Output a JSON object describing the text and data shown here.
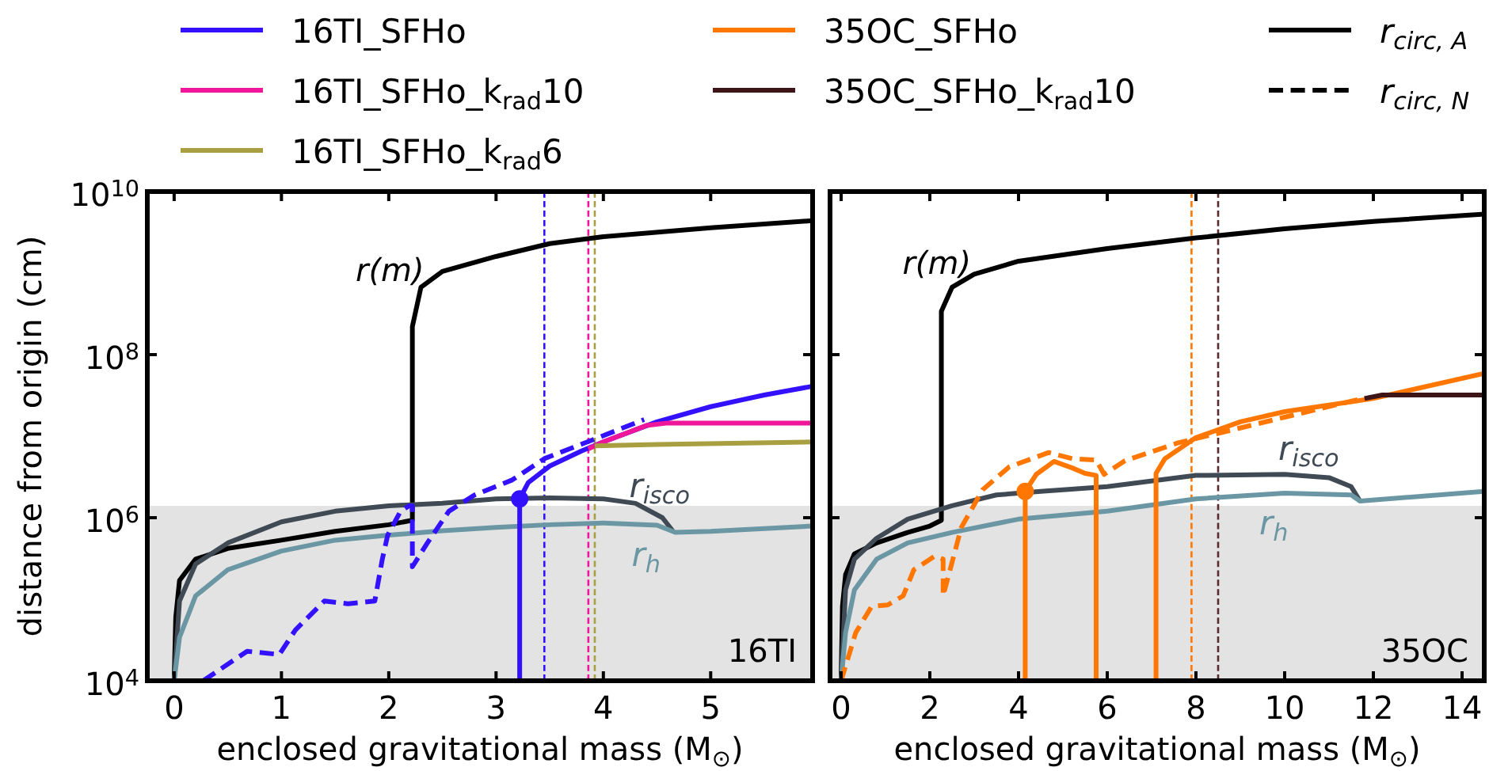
{
  "chart_data": [
    {
      "type": "line",
      "ylabel": "distance from origin (cm)",
      "xlabel": "enclosed gravitational mass (M$_{⊙}$)",
      "log": "y",
      "legend": "top",
      "xlim": [
        -0.25,
        5.95
      ],
      "xticks": [
        0,
        1,
        2,
        3,
        4,
        5
      ],
      "ylim": [
        10000,
        10000000000
      ],
      "yticks": [
        {
          "value": 10000,
          "label": "10$^{4}$"
        },
        {
          "value": 1000000,
          "label": "10$^{6}$"
        },
        {
          "value": 100000000,
          "label": "10$^{8}$"
        },
        {
          "value": 10000000000,
          "label": "10$^{10}$"
        }
      ],
      "bands": [
        {
          "axis": "y",
          "from": 10000,
          "to": 1400000,
          "color": "#e3e3e3"
        }
      ],
      "ref_lines": [
        {
          "axis": "x",
          "value": 3.45,
          "color": "#3311ff",
          "line_style": "dashed"
        },
        {
          "axis": "x",
          "value": 3.86,
          "color": "#f0169a",
          "line_style": "dashed"
        },
        {
          "axis": "x",
          "value": 3.92,
          "color": "#a8a040",
          "line_style": "dashed"
        }
      ],
      "annotations": [
        "16TI",
        {
          "text": "r(m)",
          "x": 2.36,
          "y": 800000000
        },
        {
          "text": "r$_{isco}$",
          "x": 4.3,
          "y": 1500000
        },
        {
          "text": "r$_{h}$",
          "x": 4.5,
          "y": 810000
        }
      ],
      "series": [
        {
          "color": "#000000",
          "line_style": "solid",
          "x": [
            0,
            0.015,
            0.05,
            0.2,
            0.5,
            1.0,
            1.5,
            2.0,
            2.22,
            2.22,
            2.3,
            2.5,
            3.0,
            3.5,
            4.0,
            5.0,
            5.95
          ],
          "values": [
            10000,
            60000,
            170000,
            310000,
            420000,
            530000,
            680000,
            820000,
            930000,
            220000000,
            670000000,
            1050000000,
            1600000000,
            2300000000,
            2800000000,
            3600000000,
            4400000000
          ]
        },
        {
          "color": "#3f4a55",
          "line_style": "solid",
          "x": [
            0,
            0.05,
            0.2,
            0.5,
            1.0,
            1.5,
            2.0,
            2.5,
            3.0,
            3.5,
            4.0,
            4.3,
            4.55,
            4.65
          ],
          "values": [
            10000,
            95000,
            270000,
            490000,
            890000,
            1200000,
            1400000,
            1500000,
            1700000,
            1750000,
            1700000,
            1500000,
            1000000,
            680000
          ]
        },
        {
          "color": "#6a97a3",
          "line_style": "solid",
          "x": [
            0,
            0.05,
            0.2,
            0.5,
            1.0,
            1.5,
            2.0,
            2.5,
            3.0,
            3.5,
            4.0,
            4.5,
            4.67,
            5.0,
            5.95
          ],
          "values": [
            10000,
            34000,
            110000,
            230000,
            390000,
            530000,
            610000,
            690000,
            760000,
            820000,
            860000,
            810000,
            660000,
            680000,
            790000
          ]
        },
        {
          "color": "#3311ff",
          "line_style": "dashed",
          "x": [
            0.27,
            0.68,
            0.98,
            1.13,
            1.4,
            1.62,
            1.87,
            1.94,
            1.99,
            2.11,
            2.19,
            2.22,
            2.22,
            2.36,
            2.56,
            2.8,
            3.15,
            3.45,
            3.89,
            4.14,
            4.38
          ],
          "values": [
            10000,
            23000,
            21000,
            42000,
            95000,
            88000,
            95000,
            310000,
            610000,
            1200000,
            1400000,
            1400000,
            250000,
            490000,
            1200000,
            1900000,
            2900000,
            5300000,
            8900000,
            12000000,
            16000000
          ]
        },
        {
          "color": "#3311ff",
          "line_style": "solid",
          "name": "16TI_SFHo",
          "x": [
            3.22,
            3.22,
            3.3,
            3.5,
            3.8,
            4.0,
            4.5,
            5.0,
            5.5,
            5.95
          ],
          "values": [
            10000,
            1700000,
            2700000,
            4300000,
            6600000,
            8500000,
            15000000,
            23000000,
            32000000,
            41000000
          ]
        },
        {
          "color": "#f0169a",
          "line_style": "solid",
          "name": "16TI_SFHo_k$_{rad}$10",
          "x": [
            3.86,
            4.0,
            4.4,
            4.6,
            5.95
          ],
          "values": [
            7000000,
            8500000,
            13500000,
            14500000,
            14500000
          ]
        },
        {
          "color": "#a8a040",
          "line_style": "solid",
          "name": "16TI_SFHo_k$_{rad}$6",
          "x": [
            3.92,
            4.5,
            5.95
          ],
          "values": [
            7600000,
            7900000,
            8500000
          ]
        },
        {
          "type": "scatter",
          "color": "#3311ff",
          "marker": "circle",
          "x": [
            3.22
          ],
          "values": [
            1700000
          ]
        }
      ]
    },
    {
      "type": "line",
      "xlabel": "enclosed gravitational mass (M$_{⊙}$)",
      "log": "y",
      "legend": "top",
      "tick_labels": "x",
      "xlim": [
        -0.25,
        14.5
      ],
      "xticks": [
        0,
        2,
        4,
        6,
        8,
        10,
        12,
        14
      ],
      "ylim": [
        10000,
        10000000000
      ],
      "yticks": [
        {
          "value": 10000,
          "label": null
        },
        {
          "value": 1000000,
          "label": null
        },
        {
          "value": 100000000,
          "label": null
        },
        {
          "value": 10000000000,
          "label": null
        }
      ],
      "bands": [
        {
          "axis": "y",
          "from": 10000,
          "to": 1400000,
          "color": "#e3e3e3"
        }
      ],
      "ref_lines": [
        {
          "axis": "x",
          "value": 7.9,
          "color": "#ff7700",
          "line_style": "dashed"
        },
        {
          "axis": "x",
          "value": 8.5,
          "color": "#5a2a30",
          "line_style": "dashed"
        }
      ],
      "annotations": [
        "35OC",
        "r$_{circ, A}$",
        "r$_{circ, N}$",
        {
          "text": "r(m)",
          "x": 3.0,
          "y": 970000000
        },
        {
          "text": "r$_{isco}$",
          "x": 10,
          "y": 3400000
        },
        {
          "text": "r$_{h}$",
          "x": 10,
          "y": 2000000
        }
      ],
      "series": [
        {
          "color": "#000000",
          "line_style": "solid",
          "x": [
            0,
            0.03,
            0.1,
            0.3,
            0.8,
            1.5,
            2.0,
            2.26,
            2.26,
            2.5,
            3.0,
            4.0,
            6.0,
            8.0,
            10,
            12,
            14.5
          ],
          "values": [
            10000,
            82000,
            200000,
            360000,
            490000,
            660000,
            790000,
            930000,
            340000000,
            670000000,
            970000000,
            1400000000,
            2000000000,
            2700000000,
            3500000000,
            4300000000,
            5300000000
          ]
        },
        {
          "color": "#3f4a55",
          "line_style": "solid",
          "x": [
            0,
            0.1,
            0.3,
            0.8,
            1.5,
            2.5,
            3.5,
            4.5,
            6.0,
            8.0,
            10,
            11.0,
            11.5,
            11.7
          ],
          "values": [
            10000,
            130000,
            310000,
            560000,
            960000,
            1400000,
            1900000,
            2100000,
            2400000,
            3300000,
            3400000,
            3100000,
            2400000,
            1600000
          ]
        },
        {
          "color": "#6a97a3",
          "line_style": "solid",
          "x": [
            0,
            0.1,
            0.3,
            0.8,
            1.5,
            2.5,
            4,
            6,
            8,
            10,
            11.5,
            11.7,
            14.5
          ],
          "values": [
            10000,
            39000,
            130000,
            310000,
            490000,
            660000,
            960000,
            1200000,
            1700000,
            2000000,
            1900000,
            1600000,
            2100000
          ]
        },
        {
          "color": "#ff7700",
          "line_style": "dashed",
          "x": [
            0,
            0.33,
            0.69,
            1.05,
            1.4,
            1.64,
            2.12,
            2.3,
            2.3,
            2.71,
            3.19,
            3.79,
            4.68,
            5.21,
            5.75,
            5.93,
            6.4,
            7.6,
            8.55,
            9.98,
            11.76
          ],
          "values": [
            10000,
            39000,
            82000,
            85000,
            110000,
            230000,
            340000,
            310000,
            110000,
            760000,
            2200000,
            4200000,
            6300000,
            5300000,
            5100000,
            3400000,
            5000000,
            8300000,
            11000000,
            17000000,
            29000000
          ]
        },
        {
          "color": "#ff7700",
          "line_style": "solid",
          "name": "35OC_SFHo",
          "x": [
            4.15,
            4.15,
            4.4,
            4.8,
            5.2,
            5.5,
            5.75,
            5.75,
            null,
            7.1,
            7.1,
            7.3,
            8.0,
            9,
            10,
            12,
            14.5
          ],
          "values": [
            10000,
            2100000,
            3400000,
            4900000,
            4100000,
            3500000,
            3300000,
            10000,
            null,
            10000,
            3500000,
            5300000,
            9600000,
            15000000,
            20000000,
            29000000,
            59000000
          ]
        },
        {
          "color": "#3d1418",
          "line_style": "solid",
          "name": "35OC_SFHo_k$_{rad}$10",
          "x": [
            11.8,
            12.2,
            14.5
          ],
          "values": [
            29000000,
            32000000,
            32000000
          ]
        },
        {
          "type": "scatter",
          "color": "#ff7700",
          "marker": "circle",
          "x": [
            4.15
          ],
          "values": [
            2100000
          ]
        }
      ]
    }
  ]
}
